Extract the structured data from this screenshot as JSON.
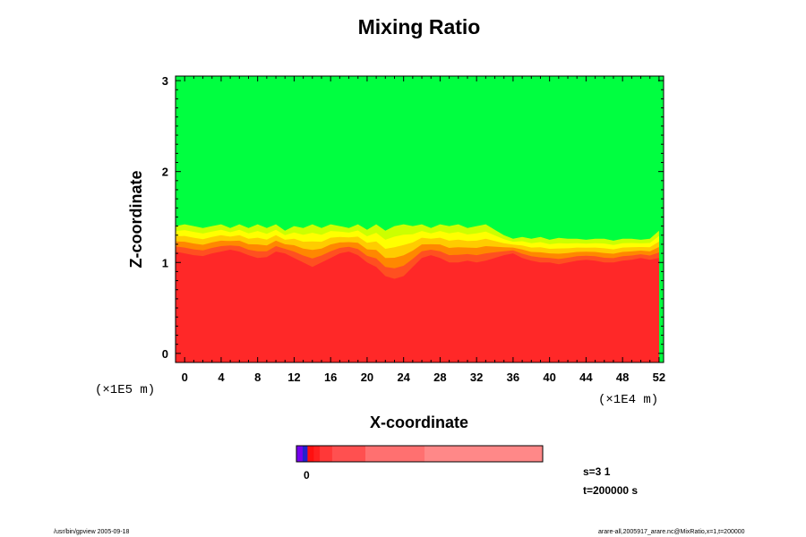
{
  "chart_data": {
    "type": "heatmap",
    "title": "Mixing Ratio",
    "xlabel": "X-coordinate",
    "ylabel": "Z-coordinate",
    "x_scale_label": "(×1E4 m)",
    "y_scale_label": "(×1E5 m)",
    "x_ticks": [
      "0",
      "4",
      "8",
      "12",
      "16",
      "20",
      "24",
      "28",
      "32",
      "36",
      "40",
      "44",
      "48",
      "52"
    ],
    "y_ticks": [
      "0",
      "1",
      "2",
      "3"
    ],
    "xlim": [
      -1,
      52.5
    ],
    "ylim": [
      -0.1,
      3.05
    ],
    "grid": false,
    "fields": {
      "upper_region_color": "#00ff40",
      "lower_region_color": "#ff2828",
      "transition_colors": [
        "#ccff00",
        "#ffff00",
        "#ffcc00",
        "#ff8800",
        "#ff5020"
      ],
      "lower_boundary_z": [
        1.12,
        1.1,
        1.08,
        1.07,
        1.1,
        1.12,
        1.14,
        1.12,
        1.08,
        1.05,
        1.06,
        1.12,
        1.1,
        1.05,
        1.0,
        0.95,
        1.0,
        1.05,
        1.1,
        1.12,
        1.08,
        1.0,
        0.95,
        0.85,
        0.82,
        0.85,
        0.95,
        1.05,
        1.08,
        1.05,
        1.0,
        1.0,
        1.02,
        1.0,
        1.02,
        1.05,
        1.08,
        1.1,
        1.05,
        1.02,
        1.0,
        1.0,
        0.98,
        1.0,
        1.02,
        1.03,
        1.02,
        1.0,
        1.0,
        1.02,
        1.03,
        1.05,
        1.03,
        1.05
      ],
      "upper_boundary_z": [
        1.4,
        1.42,
        1.4,
        1.38,
        1.4,
        1.42,
        1.38,
        1.42,
        1.38,
        1.42,
        1.38,
        1.42,
        1.35,
        1.4,
        1.38,
        1.42,
        1.38,
        1.42,
        1.4,
        1.38,
        1.42,
        1.36,
        1.42,
        1.35,
        1.4,
        1.42,
        1.4,
        1.42,
        1.38,
        1.42,
        1.4,
        1.42,
        1.38,
        1.4,
        1.42,
        1.36,
        1.3,
        1.26,
        1.28,
        1.26,
        1.28,
        1.25,
        1.27,
        1.26,
        1.26,
        1.25,
        1.26,
        1.26,
        1.24,
        1.26,
        1.26,
        1.25,
        1.26,
        1.35
      ],
      "x_start": -1,
      "x_step": 1
    },
    "colorbar": {
      "colors": [
        "#7700ee",
        "#2222cc",
        "#ff1010",
        "#ff2020",
        "#ff3838",
        "#ff5050",
        "#ff7070",
        "#ff8888",
        "#ff9e9e"
      ],
      "fractions": [
        0.025,
        0.02,
        0.025,
        0.025,
        0.05,
        0.135,
        0.24,
        0.48
      ],
      "tick_label": "0"
    },
    "info": {
      "s": "s=3 1",
      "t": "t=200000 s"
    }
  },
  "footer": {
    "left": "/usr/bin/gpview 2005-09-18",
    "right": "arare-all,2005917_arare.nc@MixRatio,x=1,t=200000"
  }
}
